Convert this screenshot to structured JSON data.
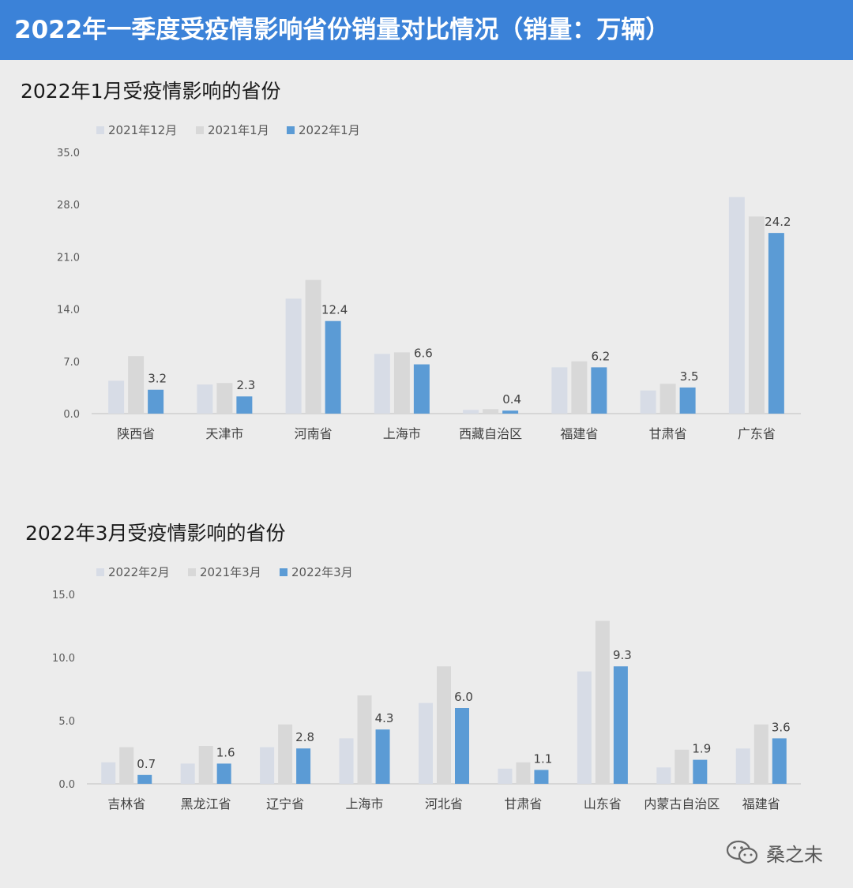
{
  "banner": {
    "title": "2022年一季度受疫情影响省份销量对比情况（销量：万辆）"
  },
  "colors": {
    "banner_bg": "#3b82d8",
    "series_light": "#d7dce6",
    "series_gray": "#d8d8d8",
    "series_blue": "#5b9bd5"
  },
  "watermark": {
    "text": "桑之未",
    "icon": "wechat-icon"
  },
  "chart_data": [
    {
      "type": "bar",
      "title": "2022年1月受疫情影响的省份",
      "categories": [
        "陕西省",
        "天津市",
        "河南省",
        "上海市",
        "西藏自治区",
        "福建省",
        "甘肃省",
        "广东省"
      ],
      "series": [
        {
          "name": "2021年12月",
          "color": "#d7dce6",
          "values": [
            4.4,
            3.9,
            15.4,
            8.0,
            0.5,
            6.2,
            3.1,
            29.0
          ]
        },
        {
          "name": "2021年1月",
          "color": "#d8d8d8",
          "values": [
            7.7,
            4.1,
            17.9,
            8.2,
            0.6,
            7.0,
            4.0,
            26.4
          ]
        },
        {
          "name": "2022年1月",
          "color": "#5b9bd5",
          "values": [
            3.2,
            2.3,
            12.4,
            6.6,
            0.4,
            6.2,
            3.5,
            24.2
          ]
        }
      ],
      "data_labels_series": "2022年1月",
      "data_labels": [
        "3.2",
        "2.3",
        "12.4",
        "6.6",
        "0.4",
        "6.2",
        "3.5",
        "24.2"
      ],
      "yticks": [
        "0.0",
        "7.0",
        "14.0",
        "21.0",
        "28.0",
        "35.0"
      ],
      "ylim": [
        0,
        35
      ],
      "grid": false,
      "legend": "top-left"
    },
    {
      "type": "bar",
      "title": "2022年3月受疫情影响的省份",
      "categories": [
        "吉林省",
        "黑龙江省",
        "辽宁省",
        "上海市",
        "河北省",
        "甘肃省",
        "山东省",
        "内蒙古自治区",
        "福建省"
      ],
      "series": [
        {
          "name": "2022年2月",
          "color": "#d7dce6",
          "values": [
            1.7,
            1.6,
            2.9,
            3.6,
            6.4,
            1.2,
            8.9,
            1.3,
            2.8
          ]
        },
        {
          "name": "2021年3月",
          "color": "#d8d8d8",
          "values": [
            2.9,
            3.0,
            4.7,
            7.0,
            9.3,
            1.7,
            12.9,
            2.7,
            4.7
          ]
        },
        {
          "name": "2022年3月",
          "color": "#5b9bd5",
          "values": [
            0.7,
            1.6,
            2.8,
            4.3,
            6.0,
            1.1,
            9.3,
            1.9,
            3.6
          ]
        }
      ],
      "data_labels_series": "2022年3月",
      "data_labels": [
        "0.7",
        "1.6",
        "2.8",
        "4.3",
        "6.0",
        "1.1",
        "9.3",
        "1.9",
        "3.6"
      ],
      "yticks": [
        "0.0",
        "5.0",
        "10.0",
        "15.0"
      ],
      "ylim": [
        0,
        15
      ],
      "grid": false,
      "legend": "top-left"
    }
  ]
}
